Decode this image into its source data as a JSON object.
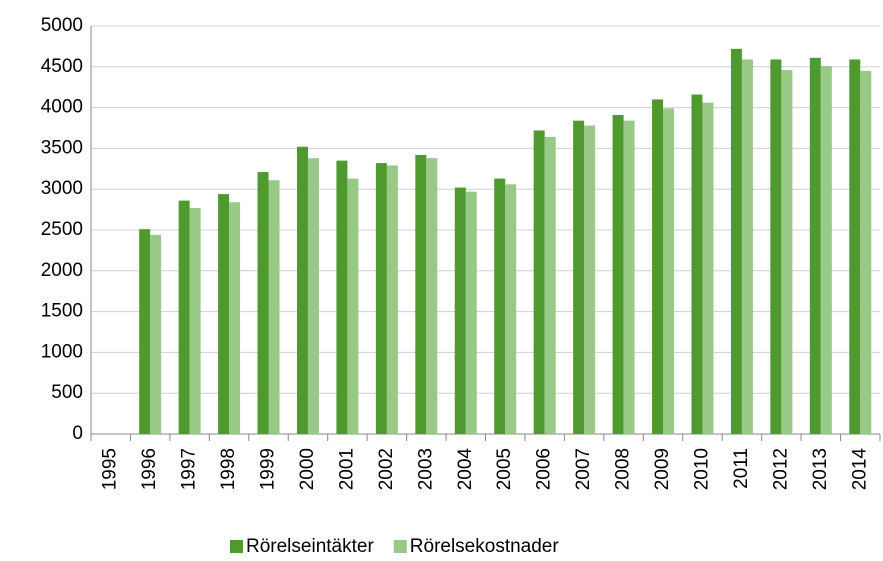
{
  "chart_data": {
    "type": "bar",
    "categories": [
      "1995",
      "1996",
      "1997",
      "1998",
      "1999",
      "2000",
      "2001",
      "2002",
      "2003",
      "2004",
      "2005",
      "2006",
      "2007",
      "2008",
      "2009",
      "2010",
      "2011",
      "2012",
      "2013",
      "2014"
    ],
    "series": [
      {
        "name": "Rörelseintäkter",
        "color": "#4f9a2f",
        "values": [
          null,
          2510,
          2860,
          2940,
          3210,
          3520,
          3350,
          3320,
          3420,
          3020,
          3130,
          3720,
          3840,
          3910,
          4100,
          4160,
          4720,
          4590,
          4610,
          4590
        ]
      },
      {
        "name": "Rörelsekostnader",
        "color": "#98c986",
        "values": [
          null,
          2440,
          2770,
          2840,
          3110,
          3380,
          3130,
          3290,
          3380,
          2970,
          3060,
          3640,
          3780,
          3840,
          3990,
          4060,
          4590,
          4460,
          4510,
          4450
        ]
      }
    ],
    "ylim": [
      0,
      5000
    ],
    "yticks": [
      0,
      500,
      1000,
      1500,
      2000,
      2500,
      3000,
      3500,
      4000,
      4500,
      5000
    ],
    "grid": true,
    "legend": "bottom"
  }
}
